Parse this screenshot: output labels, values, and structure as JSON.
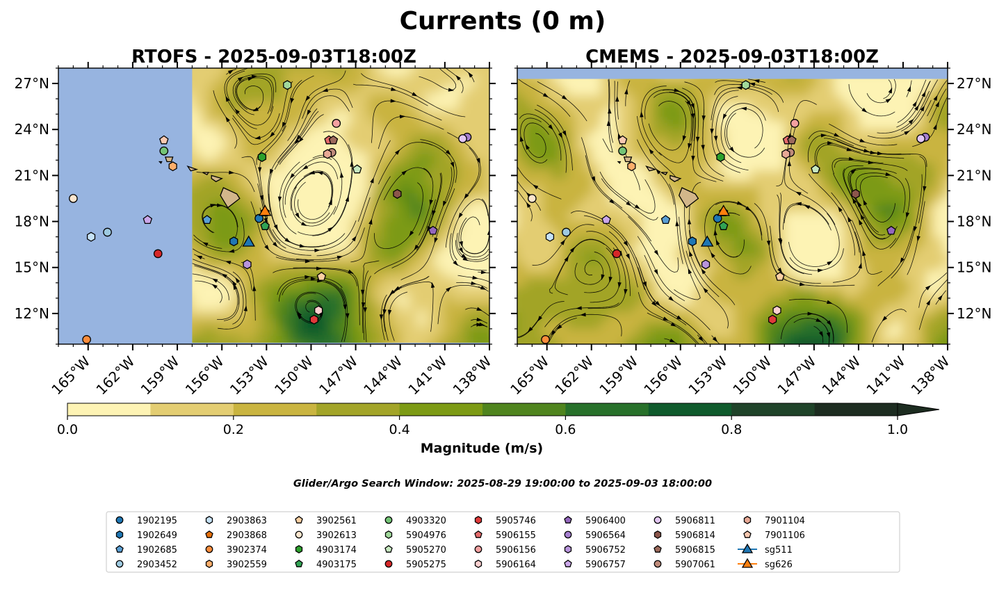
{
  "figure": {
    "title": "Currents (0 m)",
    "search_window": "Glider/Argo Search Window: 2025-08-29 19:00:00 to 2025-09-03 18:00:00",
    "colors": {
      "ocean_mask": "#97b4e0",
      "land_fill": "#d2b68a",
      "stream_color": "#000000"
    }
  },
  "chart_data": [
    {
      "type": "heatmap",
      "panel": "left",
      "title": "RTOFS - 2025-09-03T18:00Z",
      "lon_range": [
        -167,
        -138
      ],
      "lat_range": [
        10,
        28
      ],
      "model_coverage_lon": [
        -158,
        -138
      ],
      "x_ticks": [
        "165°W",
        "162°W",
        "159°W",
        "156°W",
        "153°W",
        "150°W",
        "147°W",
        "144°W",
        "141°W",
        "138°W"
      ],
      "x_tick_values": [
        -165,
        -162,
        -159,
        -156,
        -153,
        -150,
        -147,
        -144,
        -141,
        -138
      ],
      "y_ticks": [
        "12°N",
        "15°N",
        "18°N",
        "21°N",
        "24°N",
        "27°N"
      ],
      "y_tick_values": [
        12,
        15,
        18,
        21,
        24,
        27
      ],
      "y_axis_side": "left"
    },
    {
      "type": "heatmap",
      "panel": "right",
      "title": "CMEMS - 2025-09-03T18:00Z",
      "lon_range": [
        -167,
        -138
      ],
      "lat_range": [
        10,
        28
      ],
      "model_coverage_lat": [
        10,
        27.3
      ],
      "x_ticks": [
        "165°W",
        "162°W",
        "159°W",
        "156°W",
        "153°W",
        "150°W",
        "147°W",
        "144°W",
        "141°W",
        "138°W"
      ],
      "x_tick_values": [
        -165,
        -162,
        -159,
        -156,
        -153,
        -150,
        -147,
        -144,
        -141,
        -138
      ],
      "y_ticks": [
        "12°N",
        "15°N",
        "18°N",
        "21°N",
        "24°N",
        "27°N"
      ],
      "y_tick_values": [
        12,
        15,
        18,
        21,
        24,
        27
      ],
      "y_axis_side": "right"
    }
  ],
  "colorbar": {
    "label": "Magnitude (m/s)",
    "ticks": [
      "0.0",
      "0.2",
      "0.4",
      "0.6",
      "0.8",
      "1.0"
    ],
    "tick_values": [
      0,
      0.2,
      0.4,
      0.6,
      0.8,
      1.0
    ],
    "bins": [
      0,
      0.1,
      0.2,
      0.3,
      0.4,
      0.5,
      0.6,
      0.7,
      0.8,
      0.9,
      1.0
    ],
    "colors": [
      "#fdf3b4",
      "#e3cd72",
      "#c9b440",
      "#a2a428",
      "#7c9a14",
      "#4f841e",
      "#27702a",
      "#0f5a2c",
      "#1f4329",
      "#1c2c20"
    ],
    "extend": "max"
  },
  "floats": [
    {
      "name": "1902195",
      "marker": "circle",
      "color": "#1f77b4",
      "lon": -153.5,
      "lat": 18.2
    },
    {
      "name": "1902649",
      "marker": "hexagon",
      "color": "#1f77b4",
      "lon": -155.2,
      "lat": 16.7
    },
    {
      "name": "1902685",
      "marker": "pentagon",
      "color": "#5a9fd4",
      "lon": -157.0,
      "lat": 18.1
    },
    {
      "name": "2903452",
      "marker": "circle",
      "color": "#9ecae1",
      "lon": -163.7,
      "lat": 17.3
    },
    {
      "name": "2903863",
      "marker": "hexagon",
      "color": "#c6e2f7",
      "lon": -164.8,
      "lat": 17.0
    },
    {
      "name": "2903868",
      "marker": "pentagon",
      "color": "#e6700b",
      "lon": -153.1,
      "lat": 18.6
    },
    {
      "name": "3902374",
      "marker": "circle",
      "color": "#fd8d3c",
      "lon": -165.1,
      "lat": 10.3
    },
    {
      "name": "3902559",
      "marker": "hexagon",
      "color": "#fdae6b",
      "lon": -159.3,
      "lat": 21.6
    },
    {
      "name": "3902561",
      "marker": "pentagon",
      "color": "#fdd0a2",
      "lon": -149.3,
      "lat": 14.4
    },
    {
      "name": "3902613",
      "marker": "circle",
      "color": "#fee6ce",
      "lon": -166.0,
      "lat": 19.5
    },
    {
      "name": "4903174",
      "marker": "hexagon",
      "color": "#2ca02c",
      "lon": -153.3,
      "lat": 22.2
    },
    {
      "name": "4903175",
      "marker": "pentagon",
      "color": "#31a354",
      "lon": -153.1,
      "lat": 17.7
    },
    {
      "name": "4903320",
      "marker": "circle",
      "color": "#74c476",
      "lon": -159.9,
      "lat": 22.6
    },
    {
      "name": "5904976",
      "marker": "hexagon",
      "color": "#a1d99b",
      "lon": -151.6,
      "lat": 26.9
    },
    {
      "name": "5905270",
      "marker": "pentagon",
      "color": "#c7e9c0",
      "lon": -146.9,
      "lat": 21.4
    },
    {
      "name": "5905275",
      "marker": "circle",
      "color": "#d62728",
      "lon": -160.3,
      "lat": 15.9
    },
    {
      "name": "5905746",
      "marker": "hexagon",
      "color": "#e03a3a",
      "lon": -149.8,
      "lat": 11.6
    },
    {
      "name": "5906155",
      "marker": "pentagon",
      "color": "#e56b6b",
      "lon": -148.8,
      "lat": 23.3
    },
    {
      "name": "5906156",
      "marker": "circle",
      "color": "#f4a0a0",
      "lon": -148.3,
      "lat": 24.4
    },
    {
      "name": "5906164",
      "marker": "hexagon",
      "color": "#fcd0d0",
      "lon": -149.5,
      "lat": 12.2
    },
    {
      "name": "5906400",
      "marker": "pentagon",
      "color": "#9467bd",
      "lon": -141.8,
      "lat": 17.4
    },
    {
      "name": "5906564",
      "marker": "circle",
      "color": "#a57fcf",
      "lon": -139.5,
      "lat": 23.5
    },
    {
      "name": "5906752",
      "marker": "hexagon",
      "color": "#b894dc",
      "lon": -154.3,
      "lat": 15.2
    },
    {
      "name": "5906757",
      "marker": "pentagon",
      "color": "#cba7ea",
      "lon": -161.0,
      "lat": 18.1
    },
    {
      "name": "5906811",
      "marker": "circle",
      "color": "#e2c6f4",
      "lon": -139.8,
      "lat": 23.4
    },
    {
      "name": "5906814",
      "marker": "hexagon",
      "color": "#8c564b",
      "lon": -144.2,
      "lat": 19.8
    },
    {
      "name": "5906815",
      "marker": "pentagon",
      "color": "#9c6a5c",
      "lon": -148.5,
      "lat": 23.3
    },
    {
      "name": "5907061",
      "marker": "circle",
      "color": "#bf8b7a",
      "lon": -148.6,
      "lat": 22.5
    },
    {
      "name": "7901104",
      "marker": "hexagon",
      "color": "#e7a895",
      "lon": -148.9,
      "lat": 22.4
    },
    {
      "name": "7901106",
      "marker": "pentagon",
      "color": "#f9c9b1",
      "lon": -159.9,
      "lat": 23.3
    }
  ],
  "gliders": [
    {
      "name": "sg511",
      "marker": "triangle",
      "color": "#1f77b4",
      "lon": -154.2,
      "lat": 16.7
    },
    {
      "name": "sg626",
      "marker": "triangle",
      "color": "#ff7f0e",
      "lon": -153.1,
      "lat": 18.7
    }
  ]
}
